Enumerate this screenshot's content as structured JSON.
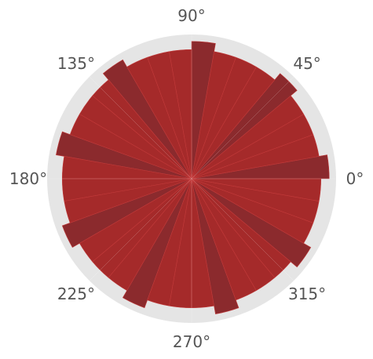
{
  "chart_data": {
    "type": "bar",
    "projection": "polar",
    "angle_ticks": [
      "0°",
      "45°",
      "90°",
      "135°",
      "180°",
      "225°",
      "270°",
      "315°"
    ],
    "angle_tick_degrees": [
      0,
      45,
      90,
      135,
      180,
      225,
      270,
      315
    ],
    "bins": 36,
    "bin_start_degrees": [
      0,
      10,
      20,
      30,
      40,
      50,
      60,
      70,
      80,
      90,
      100,
      110,
      120,
      130,
      140,
      150,
      160,
      170,
      180,
      190,
      200,
      210,
      220,
      230,
      240,
      250,
      260,
      270,
      280,
      290,
      300,
      310,
      320,
      330,
      340,
      350
    ],
    "values": [
      1.0,
      0.94,
      0.94,
      0.94,
      1.0,
      0.94,
      0.94,
      0.94,
      1.0,
      0.94,
      0.94,
      0.94,
      1.0,
      0.94,
      0.94,
      0.94,
      1.0,
      0.94,
      0.94,
      0.94,
      1.0,
      0.94,
      0.94,
      0.94,
      1.0,
      0.94,
      0.94,
      0.94,
      1.0,
      0.94,
      0.94,
      0.94,
      1.0,
      0.94,
      0.94,
      0.94
    ],
    "highlight_bins_degrees": [
      0,
      40,
      80,
      120,
      160,
      200,
      240,
      280,
      320
    ],
    "rlim": [
      0,
      1.05
    ],
    "grid": true,
    "colors": {
      "bar": "#a52a2a",
      "bar_highlight": "#8b2a2d",
      "background": "#e5e5e5",
      "grid": "#ffffff",
      "tick_label": "#555555"
    }
  }
}
